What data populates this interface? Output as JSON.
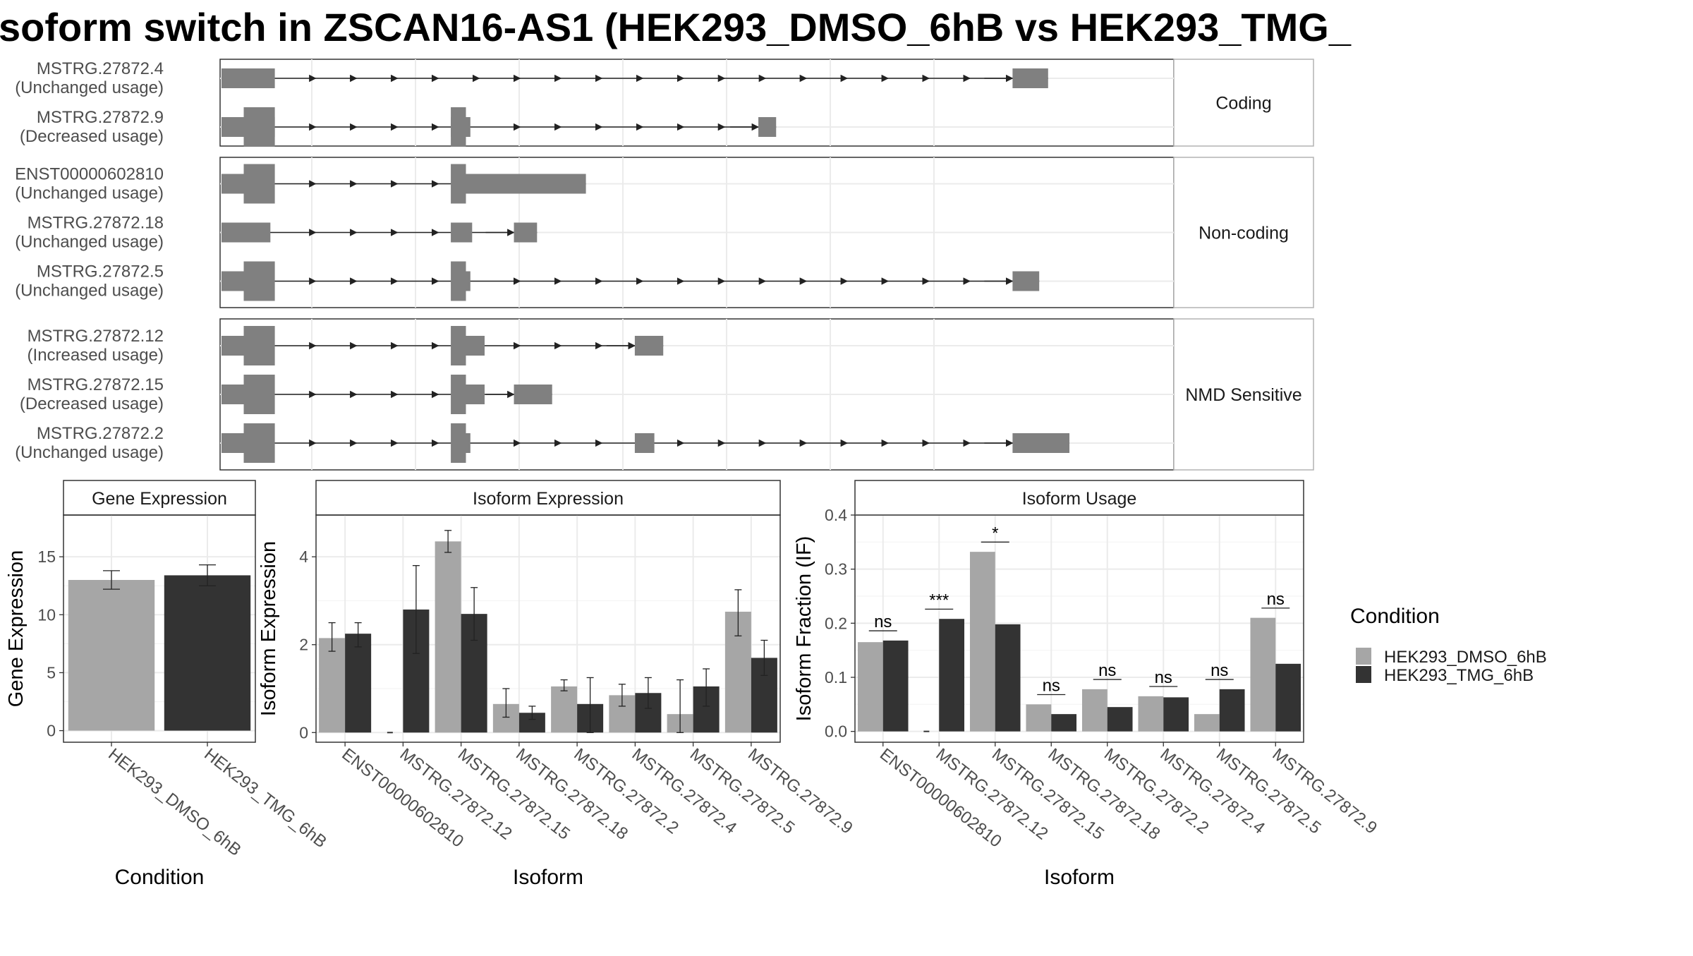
{
  "title": "soform switch in ZSCAN16-AS1 (HEK293_DMSO_6hB vs HEK293_TMG_",
  "colors": {
    "dmso": "#a6a6a6",
    "tmg": "#333333",
    "exon": "#808080",
    "strip": "#ffffff"
  },
  "structure": {
    "panels": [
      {
        "label": "Coding",
        "transcripts": [
          {
            "name": "MSTRG.27872.4",
            "usage": "(Unchanged usage)",
            "utr": [
              [
                0.0,
                0.06
              ]
            ],
            "cds": [],
            "last": [
              0.89,
              0.93
            ]
          },
          {
            "name": "MSTRG.27872.9",
            "usage": "(Decreased usage)",
            "utr": [
              [
                0.0,
                0.025
              ],
              [
                0.025,
                0.06
              ],
              [
                0.258,
                0.275
              ],
              [
                0.275,
                0.28
              ]
            ],
            "cds": [
              [
                0.025,
                0.06
              ],
              [
                0.258,
                0.275
              ]
            ],
            "last": [
              0.604,
              0.624
            ]
          }
        ]
      },
      {
        "label": "Non-coding",
        "transcripts": [
          {
            "name": "ENST00000602810",
            "usage": "(Unchanged usage)",
            "utr": [
              [
                0.0,
                0.025
              ],
              [
                0.275,
                0.41
              ]
            ],
            "cds": [
              [
                0.025,
                0.06
              ],
              [
                0.258,
                0.275
              ]
            ],
            "last": null
          },
          {
            "name": "MSTRG.27872.18",
            "usage": "(Unchanged usage)",
            "utr": [
              [
                0.0,
                0.055
              ],
              [
                0.258,
                0.282
              ]
            ],
            "cds": [],
            "last": [
              0.329,
              0.355
            ]
          },
          {
            "name": "MSTRG.27872.5",
            "usage": "(Unchanged usage)",
            "utr": [
              [
                0.0,
                0.025
              ],
              [
                0.275,
                0.28
              ]
            ],
            "cds": [
              [
                0.025,
                0.06
              ],
              [
                0.258,
                0.275
              ]
            ],
            "last": [
              0.89,
              0.92
            ]
          }
        ]
      },
      {
        "label": "NMD Sensitive",
        "transcripts": [
          {
            "name": "MSTRG.27872.12",
            "usage": "(Increased usage)",
            "utr": [
              [
                0.0,
                0.025
              ],
              [
                0.275,
                0.296
              ]
            ],
            "cds": [
              [
                0.025,
                0.06
              ],
              [
                0.258,
                0.275
              ]
            ],
            "last": [
              0.465,
              0.497
            ]
          },
          {
            "name": "MSTRG.27872.15",
            "usage": "(Decreased usage)",
            "utr": [
              [
                0.0,
                0.025
              ],
              [
                0.275,
                0.296
              ]
            ],
            "cds": [
              [
                0.025,
                0.06
              ],
              [
                0.258,
                0.275
              ]
            ],
            "last": [
              0.329,
              0.372
            ]
          },
          {
            "name": "MSTRG.27872.2",
            "usage": "(Unchanged usage)",
            "utr": [
              [
                0.0,
                0.025
              ],
              [
                0.275,
                0.28
              ],
              [
                0.465,
                0.487
              ]
            ],
            "cds": [
              [
                0.025,
                0.06
              ],
              [
                0.258,
                0.275
              ]
            ],
            "last": [
              0.89,
              0.954
            ]
          }
        ]
      }
    ]
  },
  "chart_data": [
    {
      "type": "bar",
      "title": "Gene Expression",
      "xlabel": "Condition",
      "ylabel": "Gene Expression",
      "ylim": [
        -1,
        18.6
      ],
      "yticks": [
        0,
        5,
        10,
        15
      ],
      "categories": [
        "HEK293_DMSO_6hB",
        "HEK293_TMG_6hB"
      ],
      "values": [
        13.0,
        13.4
      ],
      "errors": [
        [
          12.2,
          13.8
        ],
        [
          12.5,
          14.3
        ]
      ]
    },
    {
      "type": "bar",
      "title": "Isoform Expression",
      "xlabel": "Isoform",
      "ylabel": "Isoform Expression",
      "ylim": [
        -0.22,
        4.95
      ],
      "yticks": [
        0,
        2,
        4
      ],
      "categories": [
        "ENST00000602810",
        "MSTRG.27872.12",
        "MSTRG.27872.15",
        "MSTRG.27872.18",
        "MSTRG.27872.2",
        "MSTRG.27872.4",
        "MSTRG.27872.5",
        "MSTRG.27872.9"
      ],
      "series": [
        {
          "name": "HEK293_DMSO_6hB",
          "values": [
            2.15,
            0.0,
            4.35,
            0.65,
            1.05,
            0.85,
            0.42,
            2.75
          ],
          "errors": [
            [
              1.85,
              2.5
            ],
            [
              0.0,
              0.0
            ],
            [
              4.1,
              4.6
            ],
            [
              0.35,
              1.0
            ],
            [
              0.95,
              1.2
            ],
            [
              0.6,
              1.1
            ],
            [
              0.0,
              1.2
            ],
            [
              2.2,
              3.25
            ]
          ]
        },
        {
          "name": "HEK293_TMG_6hB",
          "values": [
            2.25,
            2.8,
            2.7,
            0.45,
            0.65,
            0.9,
            1.05,
            1.7
          ],
          "errors": [
            [
              1.95,
              2.5
            ],
            [
              1.8,
              3.8
            ],
            [
              2.1,
              3.3
            ],
            [
              0.3,
              0.6
            ],
            [
              0.0,
              1.25
            ],
            [
              0.55,
              1.25
            ],
            [
              0.6,
              1.45
            ],
            [
              1.3,
              2.1
            ]
          ]
        }
      ]
    },
    {
      "type": "bar",
      "title": "Isoform Usage",
      "xlabel": "Isoform",
      "ylabel": "Isoform Fraction (IF)",
      "ylim": [
        -0.02,
        0.4
      ],
      "yticks": [
        0.0,
        0.1,
        0.2,
        0.3,
        0.4
      ],
      "ytick_labels": [
        "0.0",
        "0.1",
        "0.2",
        "0.3",
        "0.4"
      ],
      "categories": [
        "ENST00000602810",
        "MSTRG.27872.12",
        "MSTRG.27872.15",
        "MSTRG.27872.18",
        "MSTRG.27872.2",
        "MSTRG.27872.4",
        "MSTRG.27872.5",
        "MSTRG.27872.9"
      ],
      "series": [
        {
          "name": "HEK293_DMSO_6hB",
          "values": [
            0.165,
            0.0,
            0.332,
            0.05,
            0.078,
            0.065,
            0.032,
            0.21
          ]
        },
        {
          "name": "HEK293_TMG_6hB",
          "values": [
            0.168,
            0.208,
            0.198,
            0.032,
            0.045,
            0.063,
            0.078,
            0.125
          ]
        }
      ],
      "significance": [
        "ns",
        "***",
        "*",
        "ns",
        "ns",
        "ns",
        "ns",
        "ns"
      ]
    }
  ],
  "legend": {
    "title": "Condition",
    "items": [
      {
        "label": "HEK293_DMSO_6hB",
        "color": "#a6a6a6"
      },
      {
        "label": "HEK293_TMG_6hB",
        "color": "#333333"
      }
    ]
  }
}
